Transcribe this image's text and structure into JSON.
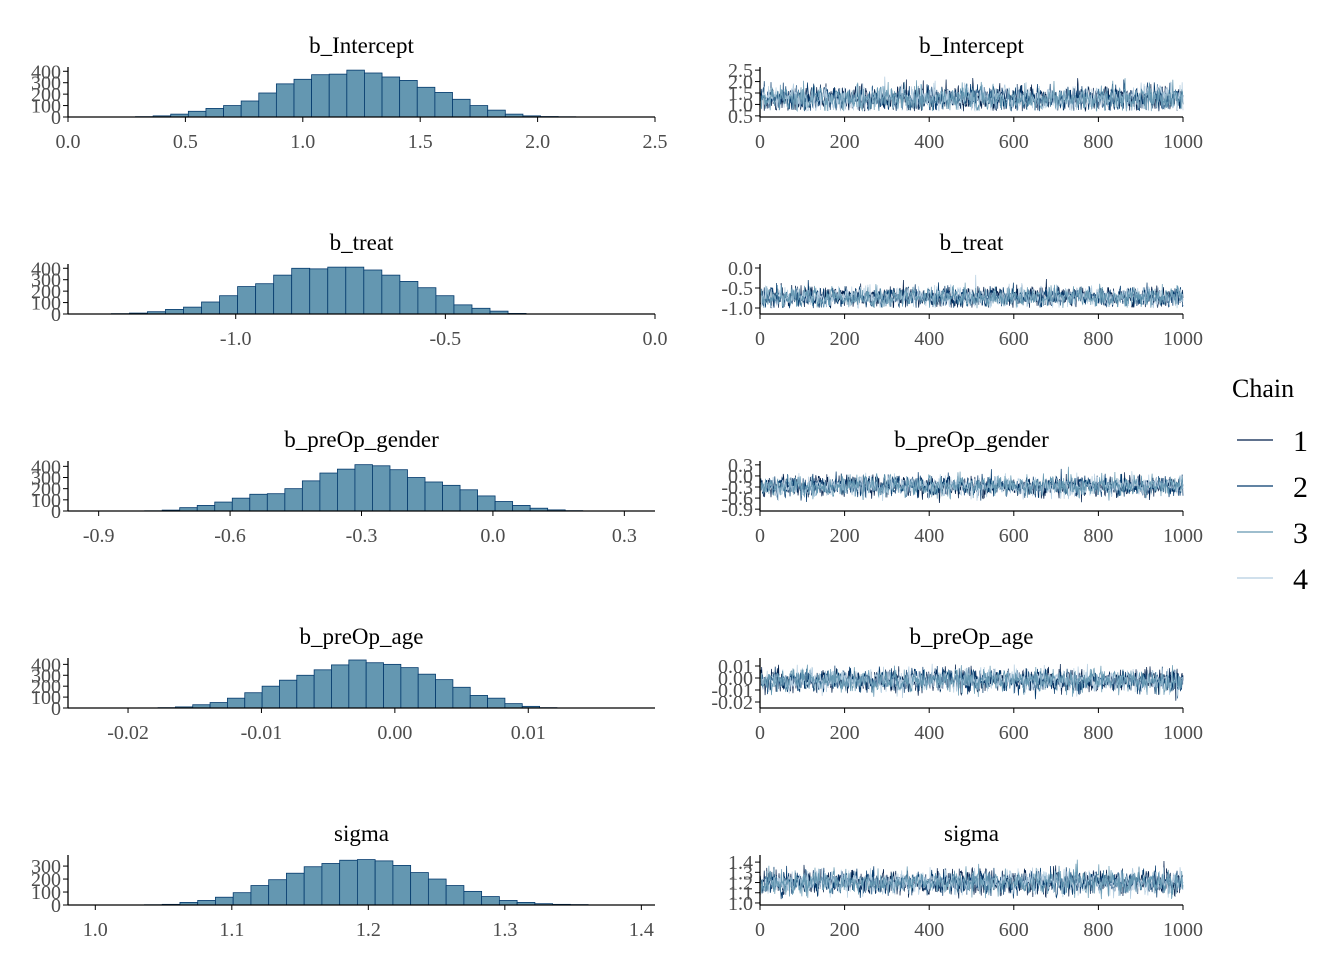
{
  "colors": {
    "bar_fill": "#6497b1",
    "bar_stroke": "#03396c",
    "axis": "#000000",
    "chains": [
      "#011f4b",
      "#03396c",
      "#6497b1",
      "#b3cde0"
    ]
  },
  "legend": {
    "title": "Chain",
    "items": [
      "1",
      "2",
      "3",
      "4"
    ]
  },
  "chart_data": [
    {
      "type": "bar",
      "title": "b_Intercept",
      "xlim": [
        0.0,
        2.5
      ],
      "xticks": [
        0.0,
        0.5,
        1.0,
        1.5,
        2.0,
        2.5
      ],
      "xtick_labels": [
        "0.0",
        "0.5",
        "1.0",
        "1.5",
        "2.0",
        "2.5"
      ],
      "ylim": [
        0,
        420
      ],
      "yticks": [
        0,
        100,
        200,
        300,
        400
      ],
      "ytick_labels": [
        "0",
        "100",
        "200",
        "300",
        "400"
      ],
      "bins": [
        0.325,
        0.4,
        0.475,
        0.55,
        0.625,
        0.7,
        0.775,
        0.85,
        0.925,
        1.0,
        1.075,
        1.15,
        1.225,
        1.3,
        1.375,
        1.45,
        1.525,
        1.6,
        1.675,
        1.75,
        1.825,
        1.9,
        1.975,
        2.05,
        2.125
      ],
      "counts": [
        3,
        10,
        25,
        50,
        75,
        100,
        140,
        210,
        290,
        330,
        370,
        375,
        410,
        385,
        350,
        320,
        260,
        215,
        155,
        100,
        60,
        25,
        10,
        4,
        2
      ]
    },
    {
      "type": "line",
      "title": "b_Intercept",
      "xlim": [
        0,
        1000
      ],
      "xticks": [
        0,
        200,
        400,
        600,
        800,
        1000
      ],
      "xtick_labels": [
        "0",
        "200",
        "400",
        "600",
        "800",
        "1000"
      ],
      "ylim": [
        0.45,
        2.55
      ],
      "yticks": [
        0.5,
        1.0,
        1.5,
        2.0,
        2.5
      ],
      "ytick_labels": [
        "0.5",
        "1.0",
        "1.5",
        "2.0",
        "2.5"
      ],
      "chain_mean": 1.25,
      "chain_sd": 0.27
    },
    {
      "type": "bar",
      "title": "b_treat",
      "xlim": [
        -1.4,
        0.0
      ],
      "xticks": [
        -1.0,
        -0.5,
        0.0
      ],
      "xtick_labels": [
        "-1.0",
        "-0.5",
        "0.0"
      ],
      "ylim": [
        0,
        420
      ],
      "yticks": [
        0,
        100,
        200,
        300,
        400
      ],
      "ytick_labels": [
        "0",
        "100",
        "200",
        "300",
        "400"
      ],
      "bins": [
        -1.275,
        -1.232,
        -1.189,
        -1.146,
        -1.103,
        -1.06,
        -1.017,
        -0.974,
        -0.931,
        -0.888,
        -0.845,
        -0.802,
        -0.759,
        -0.716,
        -0.673,
        -0.63,
        -0.587,
        -0.544,
        -0.501,
        -0.458,
        -0.415,
        -0.372,
        -0.329
      ],
      "counts": [
        3,
        8,
        20,
        40,
        60,
        105,
        160,
        240,
        265,
        340,
        400,
        395,
        410,
        410,
        385,
        340,
        285,
        230,
        160,
        80,
        50,
        25,
        5
      ]
    },
    {
      "type": "line",
      "title": "b_treat",
      "xlim": [
        0,
        1000
      ],
      "xticks": [
        0,
        200,
        400,
        600,
        800,
        1000
      ],
      "xtick_labels": [
        "0",
        "200",
        "400",
        "600",
        "800",
        "1000"
      ],
      "ylim": [
        -1.15,
        0.05
      ],
      "yticks": [
        -1.0,
        -0.5,
        0.0
      ],
      "ytick_labels": [
        "-1.0",
        "-0.5",
        "0.0"
      ],
      "chain_mean": -0.73,
      "chain_sd": 0.12
    },
    {
      "type": "bar",
      "title": "b_preOp_gender",
      "xlim": [
        -0.97,
        0.37
      ],
      "xticks": [
        -0.9,
        -0.6,
        -0.3,
        0.0,
        0.3
      ],
      "xtick_labels": [
        "-0.9",
        "-0.6",
        "-0.3",
        "0.0",
        "0.3"
      ],
      "ylim": [
        0,
        430
      ],
      "yticks": [
        0,
        100,
        200,
        300,
        400
      ],
      "ytick_labels": [
        "0",
        "100",
        "200",
        "300",
        "400"
      ],
      "bins": [
        -0.775,
        -0.735,
        -0.695,
        -0.655,
        -0.615,
        -0.575,
        -0.535,
        -0.495,
        -0.455,
        -0.415,
        -0.375,
        -0.335,
        -0.295,
        -0.255,
        -0.215,
        -0.175,
        -0.135,
        -0.095,
        -0.055,
        -0.015,
        0.025,
        0.065,
        0.105,
        0.145,
        0.185
      ],
      "counts": [
        2,
        8,
        30,
        50,
        80,
        115,
        150,
        155,
        200,
        270,
        340,
        375,
        415,
        405,
        370,
        300,
        260,
        230,
        190,
        135,
        85,
        50,
        25,
        10,
        3
      ]
    },
    {
      "type": "line",
      "title": "b_preOp_gender",
      "xlim": [
        0,
        1000
      ],
      "xticks": [
        0,
        200,
        400,
        600,
        800,
        1000
      ],
      "xtick_labels": [
        "0",
        "200",
        "400",
        "600",
        "800",
        "1000"
      ],
      "ylim": [
        -0.95,
        0.35
      ],
      "yticks": [
        -0.9,
        -0.6,
        -0.3,
        0.0,
        0.3
      ],
      "ytick_labels": [
        "-0.9",
        "-0.6",
        "-0.3",
        "0.0",
        "0.3"
      ],
      "chain_mean": -0.28,
      "chain_sd": 0.13
    },
    {
      "type": "bar",
      "title": "b_preOp_age",
      "xlim": [
        -0.0245,
        0.0195
      ],
      "xticks": [
        -0.02,
        -0.01,
        0.0,
        0.01
      ],
      "xtick_labels": [
        "-0.02",
        "-0.01",
        "0.00",
        "0.01"
      ],
      "ylim": [
        0,
        440
      ],
      "yticks": [
        0,
        100,
        200,
        300,
        400
      ],
      "ytick_labels": [
        "0",
        "100",
        "200",
        "300",
        "400"
      ],
      "bins": [
        -0.0171,
        -0.0158,
        -0.0145,
        -0.0132,
        -0.0119,
        -0.0106,
        -0.0093,
        -0.008,
        -0.0067,
        -0.0054,
        -0.0041,
        -0.0028,
        -0.0015,
        -0.0002,
        0.0011,
        0.0024,
        0.0037,
        0.005,
        0.0063,
        0.0076,
        0.0089,
        0.0102,
        0.0115
      ],
      "counts": [
        3,
        10,
        30,
        50,
        90,
        140,
        200,
        255,
        300,
        350,
        395,
        440,
        415,
        400,
        370,
        310,
        260,
        190,
        115,
        90,
        40,
        15,
        3
      ]
    },
    {
      "type": "line",
      "title": "b_preOp_age",
      "xlim": [
        0,
        1000
      ],
      "xticks": [
        0,
        200,
        400,
        600,
        800,
        1000
      ],
      "xtick_labels": [
        "0",
        "200",
        "400",
        "600",
        "800",
        "1000"
      ],
      "ylim": [
        -0.025,
        0.015
      ],
      "yticks": [
        -0.02,
        -0.01,
        0.0,
        0.01
      ],
      "ytick_labels": [
        "-0.02",
        "-0.01",
        "0.00",
        "0.01"
      ],
      "chain_mean": -0.002,
      "chain_sd": 0.0045
    },
    {
      "type": "bar",
      "title": "sigma",
      "xlim": [
        0.98,
        1.41
      ],
      "xticks": [
        1.0,
        1.1,
        1.2,
        1.3,
        1.4
      ],
      "xtick_labels": [
        "1.0",
        "1.1",
        "1.2",
        "1.3",
        "1.4"
      ],
      "ylim": [
        0,
        370
      ],
      "yticks": [
        0,
        100,
        200,
        300
      ],
      "ytick_labels": [
        "0",
        "100",
        "200",
        "300"
      ],
      "bins": [
        1.0425,
        1.0555,
        1.0685,
        1.0815,
        1.0945,
        1.1075,
        1.1205,
        1.1335,
        1.1465,
        1.1595,
        1.1725,
        1.1855,
        1.1985,
        1.2115,
        1.2245,
        1.2375,
        1.2505,
        1.2635,
        1.2765,
        1.2895,
        1.3025,
        1.3155,
        1.3285,
        1.3415,
        1.3545
      ],
      "counts": [
        2,
        5,
        20,
        35,
        60,
        95,
        150,
        195,
        245,
        295,
        320,
        345,
        350,
        340,
        305,
        250,
        200,
        150,
        105,
        65,
        35,
        20,
        10,
        5,
        3
      ]
    },
    {
      "type": "line",
      "title": "sigma",
      "xlim": [
        0,
        1000
      ],
      "xticks": [
        0,
        200,
        400,
        600,
        800,
        1000
      ],
      "xtick_labels": [
        "0",
        "200",
        "400",
        "600",
        "800",
        "1000"
      ],
      "ylim": [
        0.98,
        1.45
      ],
      "yticks": [
        1.0,
        1.1,
        1.2,
        1.3,
        1.4
      ],
      "ytick_labels": [
        "1.0",
        "1.1",
        "1.2",
        "1.3",
        "1.4"
      ],
      "chain_mean": 1.2,
      "chain_sd": 0.055
    }
  ]
}
